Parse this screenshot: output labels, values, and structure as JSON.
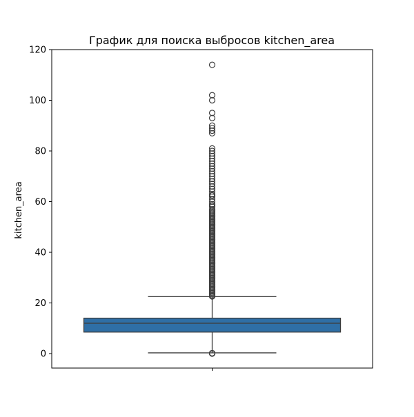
{
  "chart_data": {
    "type": "box",
    "title": "График для поиска выбросов kitchen_area",
    "xlabel": "",
    "ylabel": "kitchen_area",
    "ylim": [
      -5.7,
      120
    ],
    "yticks": [
      0,
      20,
      40,
      60,
      80,
      100,
      120
    ],
    "grid": false,
    "box": {
      "whisker_low": 0.3,
      "q1": 8.5,
      "median": 12,
      "q3": 14,
      "whisker_high": 22.5,
      "color": "#2f6fa6"
    },
    "outliers_low": [
      0,
      0.1,
      0.2
    ],
    "outliers_high": [
      22.6,
      23,
      23.5,
      24,
      24.5,
      25,
      25.5,
      26,
      26.5,
      27,
      27.5,
      28,
      28.5,
      29,
      29.5,
      30,
      30.5,
      31,
      31.5,
      32,
      32.5,
      33,
      33.5,
      34,
      34.5,
      35,
      35.5,
      36,
      36.5,
      37,
      37.5,
      38,
      38.5,
      39,
      39.5,
      40,
      40.5,
      41,
      41.5,
      42,
      42.5,
      43,
      43.5,
      44,
      44.5,
      45,
      45.5,
      46,
      46.5,
      47,
      47.5,
      48,
      48.5,
      49,
      49.5,
      50,
      50.5,
      51,
      51.5,
      52,
      52.5,
      53,
      53.5,
      54,
      54.5,
      55,
      55.5,
      56,
      56.5,
      57,
      58,
      58.5,
      59,
      60,
      61,
      62,
      62.5,
      63,
      64,
      65,
      66,
      67,
      68,
      69,
      70,
      71,
      72,
      73,
      74,
      75,
      76,
      77,
      78,
      79,
      80,
      81,
      87,
      88,
      89,
      90,
      93,
      95,
      100,
      102,
      114
    ]
  }
}
